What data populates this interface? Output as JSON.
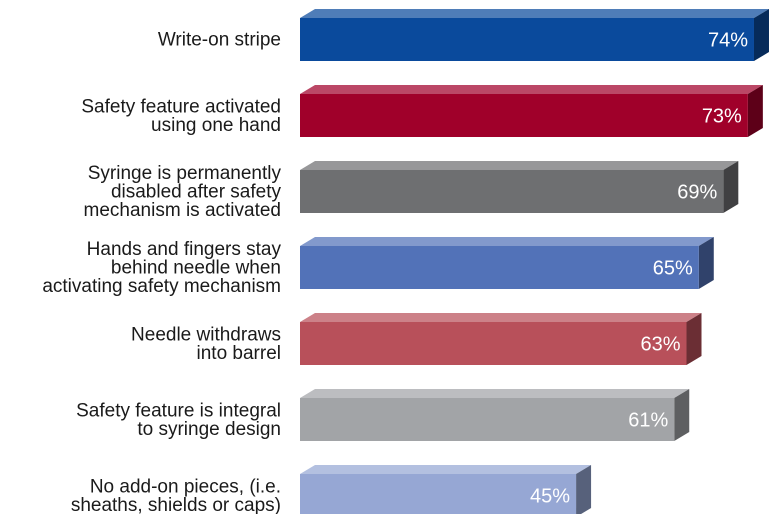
{
  "chart_data": {
    "type": "bar",
    "orientation": "horizontal",
    "style": "3d",
    "grid": false,
    "legend": "none",
    "unit": "%",
    "categories": [
      [
        "Write-on stripe"
      ],
      [
        "Safety feature activated",
        "using one hand"
      ],
      [
        "Syringe is permanently",
        "disabled after safety",
        "mechanism is activated"
      ],
      [
        "Hands and fingers stay",
        "behind needle when",
        "activating safety mechanism"
      ],
      [
        "Needle withdraws",
        "into barrel"
      ],
      [
        "Safety feature is integral",
        "to syringe design"
      ],
      [
        "No add-on pieces, (i.e.",
        "sheaths, shields or caps)"
      ]
    ],
    "values": [
      74,
      73,
      69,
      65,
      63,
      61,
      45
    ],
    "value_labels": [
      "74%",
      "73%",
      "69%",
      "65%",
      "63%",
      "61%",
      "45%"
    ],
    "colors": [
      "#0a4a9c",
      "#a0002a",
      "#6e6f71",
      "#5272b8",
      "#b8505a",
      "#a2a4a7",
      "#96a7d4"
    ]
  }
}
